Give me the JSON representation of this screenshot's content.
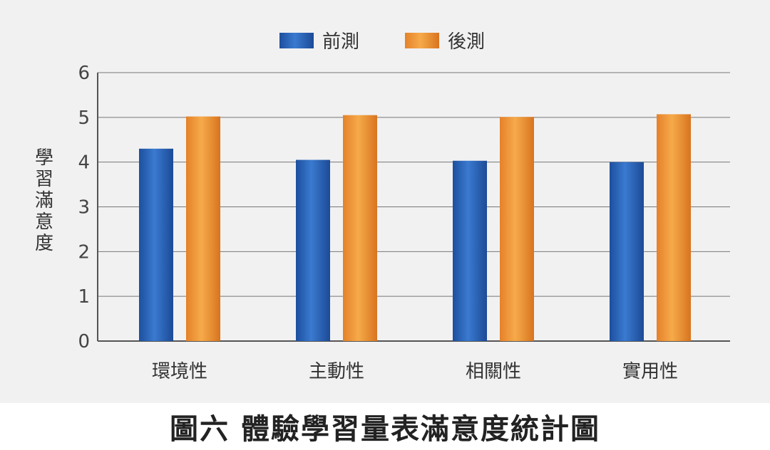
{
  "caption": "圖六 體驗學習量表滿意度統計圖",
  "chart_data": {
    "type": "bar",
    "categories": [
      "環境性",
      "主動性",
      "相關性",
      "實用性"
    ],
    "series": [
      {
        "name": "前測",
        "values": [
          4.3,
          4.05,
          4.03,
          4.0
        ],
        "color": "#2a63b8"
      },
      {
        "name": "後測",
        "values": [
          5.02,
          5.05,
          5.01,
          5.07
        ],
        "color": "#f0972e"
      }
    ],
    "ylabel": "學習滿意度",
    "xlabel": "",
    "ylim": [
      0,
      6
    ],
    "yticks": [
      0,
      1,
      2,
      3,
      4,
      5,
      6
    ],
    "grid": true,
    "legend": "top-center"
  }
}
